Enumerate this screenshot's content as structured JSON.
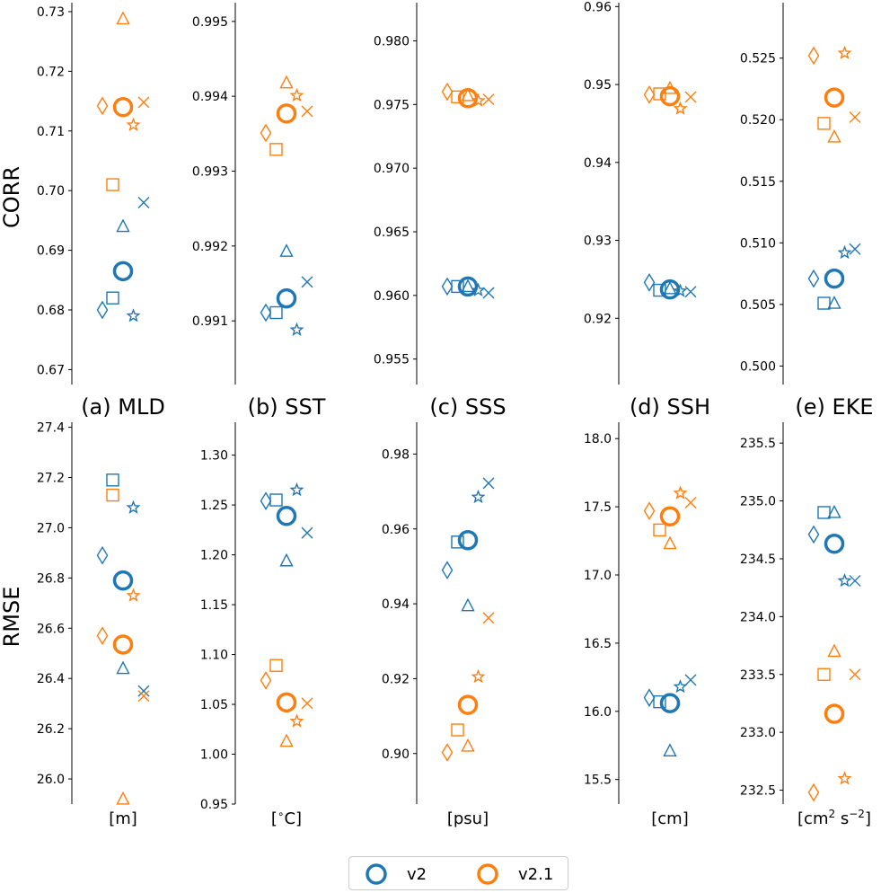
{
  "colors": {
    "v2": "#1f77b4",
    "v2.1": "#ff7f0e"
  },
  "legend": [
    {
      "name": "v2",
      "label": "v2"
    },
    {
      "name": "v2.1",
      "label": "v2.1"
    }
  ],
  "chart_data": {
    "type": "scatter",
    "rows": [
      {
        "label": "CORR",
        "key": "corr"
      },
      {
        "label": "RMSE",
        "key": "rmse"
      }
    ],
    "columns": [
      {
        "title": "(a) MLD",
        "unit_parts": [
          "[m]"
        ]
      },
      {
        "title": "(b) SST",
        "unit_parts": [
          "[",
          "∘",
          "C]"
        ]
      },
      {
        "title": "(c) SSS",
        "unit_parts": [
          "[psu]"
        ]
      },
      {
        "title": "(d) SSH",
        "unit_parts": [
          "[cm]"
        ]
      },
      {
        "title": "(e) EKE",
        "unit_parts": [
          "[cm",
          "2",
          " s",
          "−2",
          "]"
        ]
      }
    ],
    "marker_slots": {
      "diamond": -2,
      "square": -1,
      "circle": 0,
      "triangle": 0,
      "star": 1,
      "x": 2
    },
    "panels": [
      {
        "id": "corr-mld",
        "ylim": [
          0.6675,
          0.7315
        ],
        "ticks": [
          0.67,
          0.68,
          0.69,
          0.7,
          0.71,
          0.72,
          0.73
        ],
        "tick_labels": [
          "0.67",
          "0.68",
          "0.69",
          "0.70",
          "0.71",
          "0.72",
          "0.73"
        ],
        "series": [
          {
            "name": "v2",
            "points": {
              "diamond": 0.68,
              "square": 0.682,
              "circle": 0.6865,
              "triangle": 0.694,
              "star": 0.679,
              "x": 0.698
            }
          },
          {
            "name": "v2.1",
            "points": {
              "diamond": 0.7142,
              "square": 0.701,
              "circle": 0.714,
              "triangle": 0.7288,
              "star": 0.711,
              "x": 0.7148
            }
          }
        ]
      },
      {
        "id": "corr-sst",
        "ylim": [
          0.99015,
          0.99525
        ],
        "ticks": [
          0.991,
          0.992,
          0.993,
          0.994,
          0.995
        ],
        "tick_labels": [
          "0.991",
          "0.992",
          "0.993",
          "0.994",
          "0.995"
        ],
        "series": [
          {
            "name": "v2",
            "points": {
              "diamond": 0.99111,
              "square": 0.99111,
              "circle": 0.9913,
              "triangle": 0.99193,
              "star": 0.99088,
              "x": 0.99152
            }
          },
          {
            "name": "v2.1",
            "points": {
              "diamond": 0.99351,
              "square": 0.99329,
              "circle": 0.99377,
              "triangle": 0.99418,
              "star": 0.99401,
              "x": 0.9938
            }
          }
        ]
      },
      {
        "id": "corr-sss",
        "ylim": [
          0.953,
          0.983
        ],
        "ticks": [
          0.955,
          0.96,
          0.965,
          0.97,
          0.975,
          0.98
        ],
        "tick_labels": [
          "0.955",
          "0.960",
          "0.965",
          "0.970",
          "0.975",
          "0.980"
        ],
        "series": [
          {
            "name": "v2",
            "points": {
              "diamond": 0.9607,
              "square": 0.9607,
              "circle": 0.9607,
              "triangle": 0.9607,
              "star": 0.9604,
              "x": 0.9602
            }
          },
          {
            "name": "v2.1",
            "points": {
              "diamond": 0.976,
              "square": 0.9756,
              "circle": 0.9755,
              "triangle": 0.9757,
              "star": 0.9753,
              "x": 0.9754
            }
          }
        ]
      },
      {
        "id": "corr-ssh",
        "ylim": [
          0.9115,
          0.9605
        ],
        "ticks": [
          0.92,
          0.93,
          0.94,
          0.95,
          0.96
        ],
        "tick_labels": [
          "0.92",
          "0.93",
          "0.94",
          "0.95",
          "0.96"
        ],
        "series": [
          {
            "name": "v2",
            "points": {
              "diamond": 0.9246,
              "square": 0.9236,
              "circle": 0.9237,
              "triangle": 0.9238,
              "star": 0.9235,
              "x": 0.9234
            }
          },
          {
            "name": "v2.1",
            "points": {
              "diamond": 0.9487,
              "square": 0.9488,
              "circle": 0.9485,
              "triangle": 0.9495,
              "star": 0.9469,
              "x": 0.9484
            }
          }
        ]
      },
      {
        "id": "corr-eke",
        "ylim": [
          0.4985,
          0.5295
        ],
        "ticks": [
          0.5,
          0.505,
          0.51,
          0.515,
          0.52,
          0.525
        ],
        "tick_labels": [
          "0.500",
          "0.505",
          "0.510",
          "0.515",
          "0.520",
          "0.525"
        ],
        "series": [
          {
            "name": "v2",
            "points": {
              "diamond": 0.5071,
              "square": 0.5051,
              "circle": 0.5071,
              "triangle": 0.5051,
              "star": 0.5092,
              "x": 0.5095
            }
          },
          {
            "name": "v2.1",
            "points": {
              "diamond": 0.5252,
              "square": 0.5197,
              "circle": 0.5218,
              "triangle": 0.5186,
              "star": 0.5254,
              "x": 0.5202
            }
          }
        ]
      },
      {
        "id": "rmse-mld",
        "ylim": [
          25.9,
          27.42
        ],
        "ticks": [
          26.0,
          26.2,
          26.4,
          26.6,
          26.8,
          27.0,
          27.2,
          27.4
        ],
        "tick_labels": [
          "26.0",
          "26.2",
          "26.4",
          "26.6",
          "26.8",
          "27.0",
          "27.2",
          "27.4"
        ],
        "series": [
          {
            "name": "v2",
            "points": {
              "diamond": 26.89,
              "square": 27.19,
              "circle": 26.79,
              "triangle": 26.44,
              "star": 27.08,
              "x": 26.35
            }
          },
          {
            "name": "v2.1",
            "points": {
              "diamond": 26.57,
              "square": 27.13,
              "circle": 26.535,
              "triangle": 25.92,
              "star": 26.73,
              "x": 26.33
            }
          }
        ]
      },
      {
        "id": "rmse-sst",
        "ylim": [
          0.95,
          1.333
        ],
        "ticks": [
          0.95,
          1.0,
          1.05,
          1.1,
          1.15,
          1.2,
          1.25,
          1.3
        ],
        "tick_labels": [
          "0.95",
          "1.00",
          "1.05",
          "1.10",
          "1.15",
          "1.20",
          "1.25",
          "1.30"
        ],
        "series": [
          {
            "name": "v2",
            "points": {
              "diamond": 1.254,
              "square": 1.255,
              "circle": 1.239,
              "triangle": 1.194,
              "star": 1.265,
              "x": 1.222
            }
          },
          {
            "name": "v2.1",
            "points": {
              "diamond": 1.074,
              "square": 1.089,
              "circle": 1.052,
              "triangle": 1.013,
              "star": 1.033,
              "x": 1.051
            }
          }
        ]
      },
      {
        "id": "rmse-sss",
        "ylim": [
          0.8865,
          0.9885
        ],
        "ticks": [
          0.9,
          0.92,
          0.94,
          0.96,
          0.98
        ],
        "tick_labels": [
          "0.90",
          "0.92",
          "0.94",
          "0.96",
          "0.98"
        ],
        "series": [
          {
            "name": "v2",
            "points": {
              "diamond": 0.949,
              "square": 0.9565,
              "circle": 0.957,
              "triangle": 0.9395,
              "star": 0.9685,
              "x": 0.9722
            }
          },
          {
            "name": "v2.1",
            "points": {
              "diamond": 0.9003,
              "square": 0.9063,
              "circle": 0.913,
              "triangle": 0.902,
              "star": 0.9205,
              "x": 0.9362
            }
          }
        ]
      },
      {
        "id": "rmse-ssh",
        "ylim": [
          15.32,
          18.12
        ],
        "ticks": [
          15.5,
          16.0,
          16.5,
          17.0,
          17.5,
          18.0
        ],
        "tick_labels": [
          "15.5",
          "16.0",
          "16.5",
          "17.0",
          "17.5",
          "18.0"
        ],
        "series": [
          {
            "name": "v2",
            "points": {
              "diamond": 16.1,
              "square": 16.07,
              "circle": 16.06,
              "triangle": 15.71,
              "star": 16.18,
              "x": 16.23
            }
          },
          {
            "name": "v2.1",
            "points": {
              "diamond": 17.47,
              "square": 17.33,
              "circle": 17.43,
              "triangle": 17.23,
              "star": 17.6,
              "x": 17.53
            }
          }
        ]
      },
      {
        "id": "rmse-eke",
        "ylim": [
          232.38,
          235.68
        ],
        "ticks": [
          232.5,
          233.0,
          233.5,
          234.0,
          234.5,
          235.0,
          235.5
        ],
        "tick_labels": [
          "232.5",
          "233.0",
          "233.5",
          "234.0",
          "234.5",
          "235.0",
          "235.5"
        ],
        "series": [
          {
            "name": "v2",
            "points": {
              "diamond": 234.71,
              "square": 234.9,
              "circle": 234.63,
              "triangle": 234.9,
              "star": 234.31,
              "x": 234.31
            }
          },
          {
            "name": "v2.1",
            "points": {
              "diamond": 232.48,
              "square": 233.5,
              "circle": 233.16,
              "triangle": 233.7,
              "star": 232.6,
              "x": 233.5
            }
          }
        ]
      }
    ]
  }
}
